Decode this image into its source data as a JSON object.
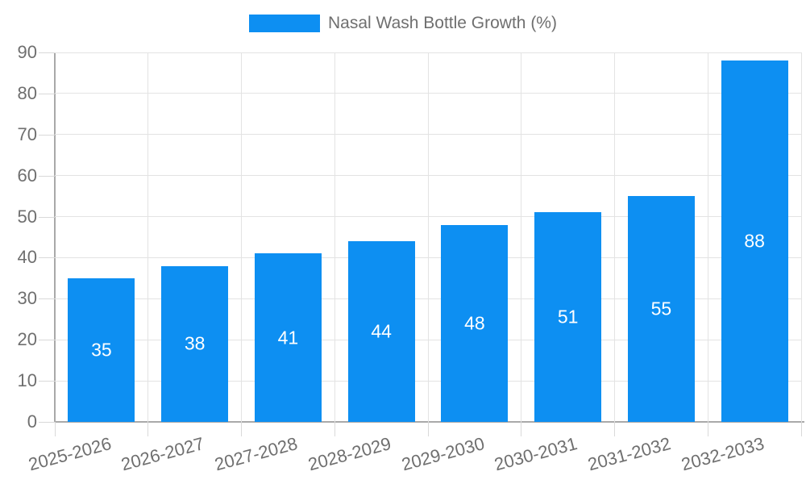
{
  "legend": {
    "label": "Nasal Wash Bottle Growth (%)"
  },
  "chart_data": {
    "type": "bar",
    "title": "Nasal Wash Bottle Growth (%)",
    "categories": [
      "2025-2026",
      "2026-2027",
      "2027-2028",
      "2028-2029",
      "2029-2030",
      "2030-2031",
      "2031-2032",
      "2032-2033"
    ],
    "values": [
      35,
      38,
      41,
      44,
      48,
      51,
      55,
      88
    ],
    "xlabel": "",
    "ylabel": "",
    "ylim": [
      0,
      90
    ],
    "ytick_step": 10,
    "grid": true,
    "legend_position": "top-center",
    "value_labels": "inside-center",
    "colors": {
      "bar": "#0d8ff2",
      "value_label": "#ffffff",
      "axis_text": "#6f6f6f",
      "grid_line": "#e3e3e3",
      "tick_line": "#d9d9d9",
      "axis_line": "#a9a9a9"
    }
  }
}
